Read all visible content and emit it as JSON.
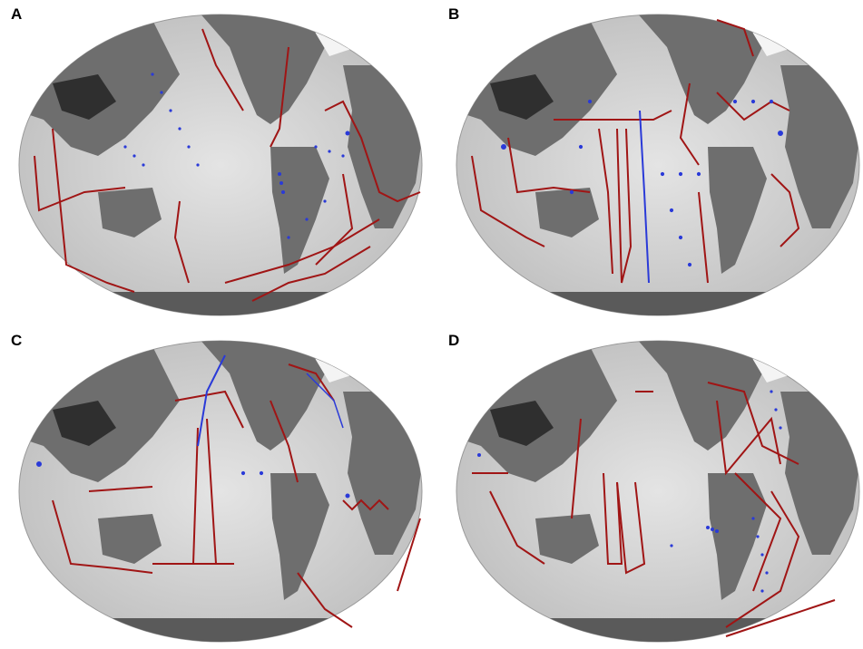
{
  "panels": [
    {
      "label": "A"
    },
    {
      "label": "B"
    },
    {
      "label": "C"
    },
    {
      "label": "D"
    }
  ],
  "colors": {
    "ocean": "#d6d6d6",
    "ocean_light": "#ececec",
    "land": "#7a7a7a",
    "land_dark": "#4a4a4a",
    "shelf": "#f7f7f7",
    "track_red": "#a01515",
    "track_blue": "#2a3ad8"
  }
}
